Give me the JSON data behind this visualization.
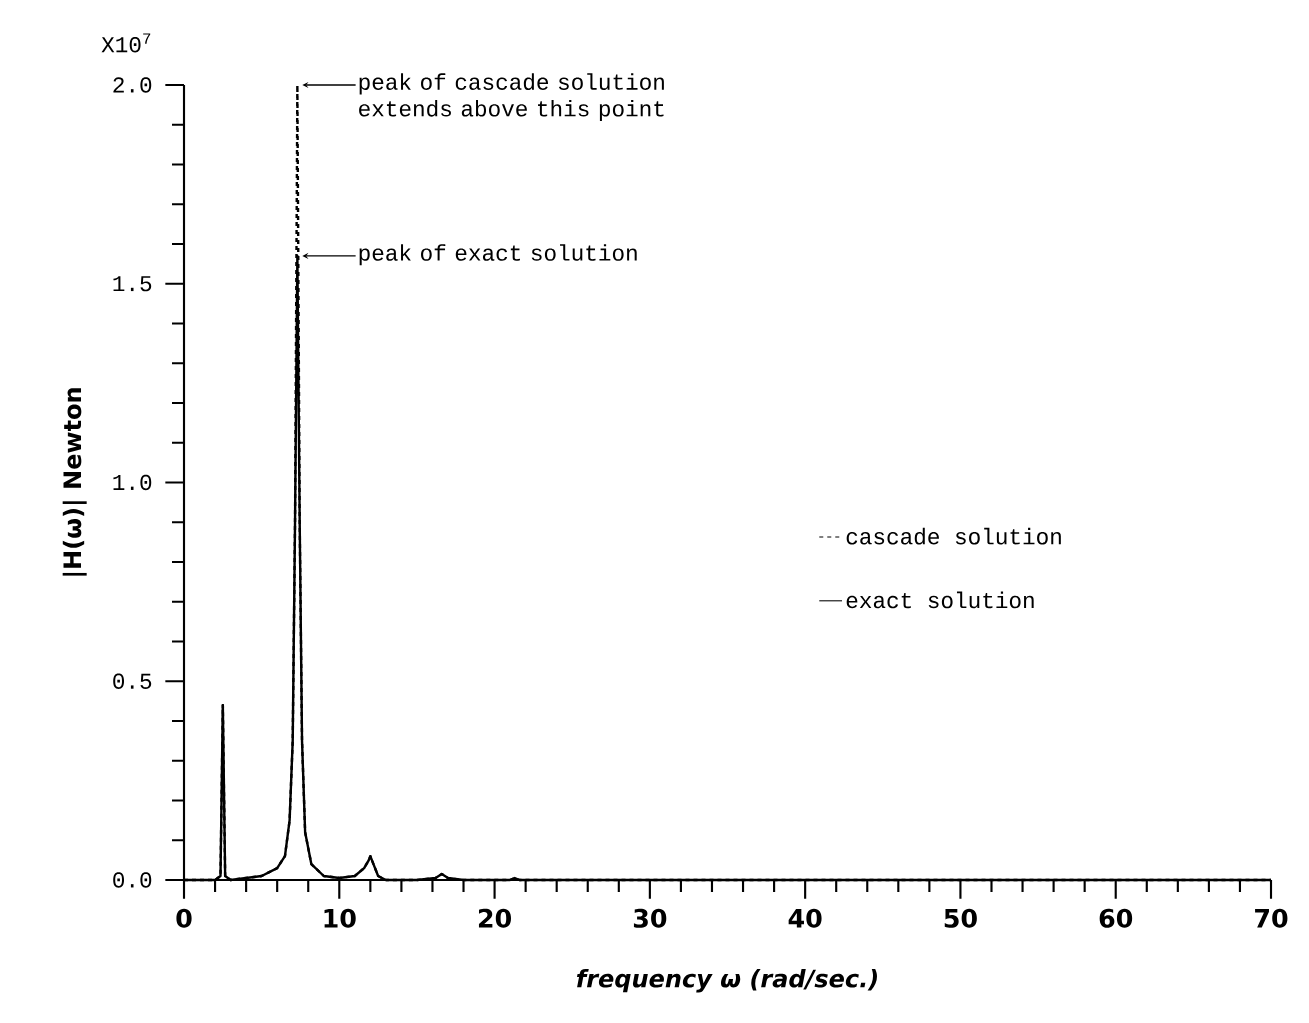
{
  "chart_data": {
    "type": "line",
    "xlabel": "frequency ω (rad/sec.)",
    "ylabel": "|H(ω)|   Newton",
    "xlim": [
      0,
      70
    ],
    "ylim": [
      0,
      2.0
    ],
    "xticks": [
      0,
      10,
      20,
      30,
      40,
      50,
      60,
      70,
      {
        "value": 2,
        "label": null
      },
      {
        "value": 4,
        "label": null
      },
      {
        "value": 6,
        "label": null
      },
      {
        "value": 8,
        "label": null
      },
      {
        "value": 12,
        "label": null
      },
      {
        "value": 14,
        "label": null
      },
      {
        "value": 16,
        "label": null
      },
      {
        "value": 18,
        "label": null
      },
      {
        "value": 22,
        "label": null
      },
      {
        "value": 24,
        "label": null
      },
      {
        "value": 26,
        "label": null
      },
      {
        "value": 28,
        "label": null
      },
      {
        "value": 32,
        "label": null
      },
      {
        "value": 34,
        "label": null
      },
      {
        "value": 36,
        "label": null
      },
      {
        "value": 38,
        "label": null
      },
      {
        "value": 42,
        "label": null
      },
      {
        "value": 44,
        "label": null
      },
      {
        "value": 46,
        "label": null
      },
      {
        "value": 48,
        "label": null
      },
      {
        "value": 52,
        "label": null
      },
      {
        "value": 54,
        "label": null
      },
      {
        "value": 56,
        "label": null
      },
      {
        "value": 58,
        "label": null
      },
      {
        "value": 62,
        "label": null
      },
      {
        "value": 64,
        "label": null
      },
      {
        "value": 66,
        "label": null
      },
      {
        "value": 68,
        "label": null
      }
    ],
    "yticks": [
      {
        "value": 0,
        "label": "0.0"
      },
      {
        "value": 0.5,
        "label": "0.5"
      },
      {
        "value": 1.0,
        "label": "1.0"
      },
      {
        "value": 1.5,
        "label": "1.5"
      },
      {
        "value": 2.0,
        "label": "2.0"
      },
      {
        "value": 0.1,
        "label": null
      },
      {
        "value": 0.2,
        "label": null
      },
      {
        "value": 0.3,
        "label": null
      },
      {
        "value": 0.4,
        "label": null
      },
      {
        "value": 0.6,
        "label": null
      },
      {
        "value": 0.7,
        "label": null
      },
      {
        "value": 0.8,
        "label": null
      },
      {
        "value": 0.9,
        "label": null
      },
      {
        "value": 1.1,
        "label": null
      },
      {
        "value": 1.2,
        "label": null
      },
      {
        "value": 1.3,
        "label": null
      },
      {
        "value": 1.4,
        "label": null
      },
      {
        "value": 1.6,
        "label": null
      },
      {
        "value": 1.7,
        "label": null
      },
      {
        "value": 1.8,
        "label": null
      },
      {
        "value": 1.9,
        "label": null
      }
    ],
    "x": [
      0,
      1,
      2,
      2.35,
      2.5,
      2.65,
      3,
      4,
      5,
      6,
      6.5,
      6.8,
      7.0,
      7.15,
      7.3,
      7.45,
      7.6,
      7.8,
      8.2,
      9,
      10,
      11,
      11.6,
      11.9,
      12.0,
      12.2,
      12.5,
      13,
      15,
      16.2,
      16.6,
      17.0,
      18,
      21,
      21.3,
      21.6,
      25,
      30,
      40,
      50,
      60,
      70
    ],
    "series": [
      {
        "name": "cascade solution",
        "color": "#000000",
        "line_style": "dashed",
        "values": [
          0,
          0,
          0,
          0.01,
          0.44,
          0.01,
          0,
          0.005,
          0.01,
          0.03,
          0.06,
          0.15,
          0.35,
          0.9,
          2.0,
          0.9,
          0.35,
          0.12,
          0.04,
          0.01,
          0.005,
          0.01,
          0.03,
          0.05,
          0.06,
          0.04,
          0.01,
          0,
          0,
          0.005,
          0.015,
          0.005,
          0,
          0,
          0.005,
          0,
          0,
          0,
          0,
          0,
          0,
          0
        ]
      },
      {
        "name": "exact solution",
        "color": "#000000",
        "line_style": "solid",
        "values": [
          0,
          0,
          0,
          0.01,
          0.44,
          0.01,
          0,
          0.005,
          0.01,
          0.03,
          0.06,
          0.15,
          0.35,
          0.9,
          1.57,
          0.9,
          0.35,
          0.12,
          0.04,
          0.01,
          0.005,
          0.01,
          0.03,
          0.05,
          0.06,
          0.04,
          0.01,
          0,
          0,
          0.005,
          0.015,
          0.005,
          0,
          0,
          0.005,
          0,
          0,
          0,
          0,
          0,
          0,
          0
        ]
      }
    ],
    "legend": "right",
    "annotations": [
      {
        "text": "peak of cascade solution extends above this point",
        "x": 7.3,
        "y": 2.0
      },
      {
        "text": "peak of exact solution",
        "x": 7.3,
        "y": 1.57
      },
      "X10$^{7}$"
    ]
  }
}
